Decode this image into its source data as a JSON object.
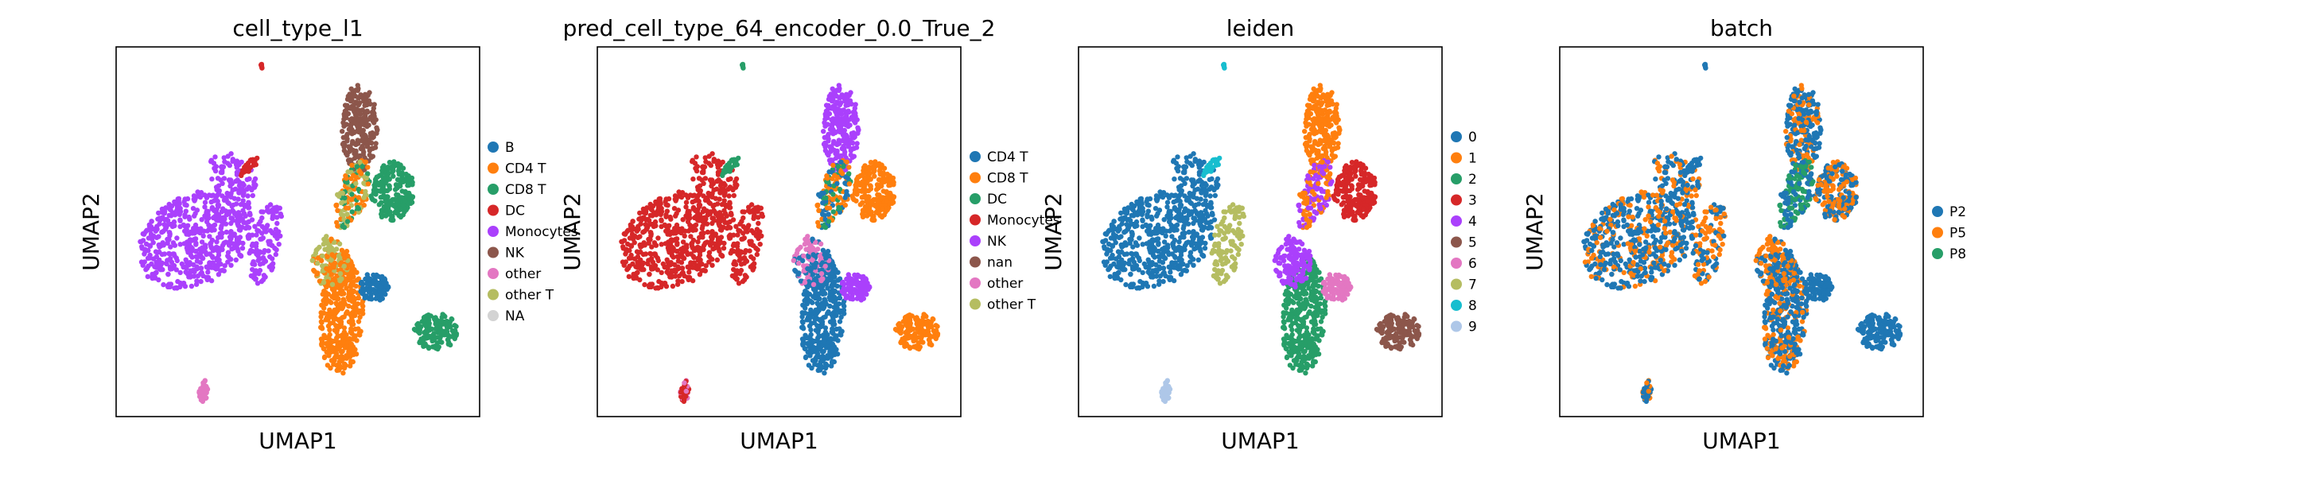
{
  "chart_data": [
    {
      "type": "scatter",
      "title": "cell_type_l1",
      "xlabel": "UMAP1",
      "ylabel": "UMAP2",
      "grid": false,
      "legend_position": "right",
      "legend": [
        {
          "label": "B",
          "color": "#1f77b4"
        },
        {
          "label": "CD4 T",
          "color": "#ff7f0e"
        },
        {
          "label": "CD8 T",
          "color": "#279e68"
        },
        {
          "label": "DC",
          "color": "#d62728"
        },
        {
          "label": "Monocytes",
          "color": "#aa40fc"
        },
        {
          "label": "NK",
          "color": "#8c564b"
        },
        {
          "label": "other",
          "color": "#e377c2"
        },
        {
          "label": "other T",
          "color": "#b5bd61"
        },
        {
          "label": "NA",
          "color": "#d3d3d3"
        }
      ]
    },
    {
      "type": "scatter",
      "title": "pred_cell_type_64_encoder_0.0_True_2",
      "xlabel": "UMAP1",
      "ylabel": "UMAP2",
      "grid": false,
      "legend_position": "right",
      "legend": [
        {
          "label": "CD4 T",
          "color": "#1f77b4"
        },
        {
          "label": "CD8 T",
          "color": "#ff7f0e"
        },
        {
          "label": "DC",
          "color": "#279e68"
        },
        {
          "label": "Monocytes",
          "color": "#d62728"
        },
        {
          "label": "NK",
          "color": "#aa40fc"
        },
        {
          "label": "nan",
          "color": "#8c564b"
        },
        {
          "label": "other",
          "color": "#e377c2"
        },
        {
          "label": "other T",
          "color": "#b5bd61"
        }
      ]
    },
    {
      "type": "scatter",
      "title": "leiden",
      "xlabel": "UMAP1",
      "ylabel": "UMAP2",
      "grid": false,
      "legend_position": "right",
      "legend": [
        {
          "label": "0",
          "color": "#1f77b4"
        },
        {
          "label": "1",
          "color": "#ff7f0e"
        },
        {
          "label": "2",
          "color": "#279e68"
        },
        {
          "label": "3",
          "color": "#d62728"
        },
        {
          "label": "4",
          "color": "#aa40fc"
        },
        {
          "label": "5",
          "color": "#8c564b"
        },
        {
          "label": "6",
          "color": "#e377c2"
        },
        {
          "label": "7",
          "color": "#b5bd61"
        },
        {
          "label": "8",
          "color": "#17becf"
        },
        {
          "label": "9",
          "color": "#aec7e8"
        }
      ]
    },
    {
      "type": "scatter",
      "title": "batch",
      "xlabel": "UMAP1",
      "ylabel": "UMAP2",
      "grid": false,
      "legend_position": "right",
      "legend": [
        {
          "label": "P2",
          "color": "#1f77b4"
        },
        {
          "label": "P5",
          "color": "#ff7f0e"
        },
        {
          "label": "P8",
          "color": "#279e68"
        }
      ]
    }
  ]
}
